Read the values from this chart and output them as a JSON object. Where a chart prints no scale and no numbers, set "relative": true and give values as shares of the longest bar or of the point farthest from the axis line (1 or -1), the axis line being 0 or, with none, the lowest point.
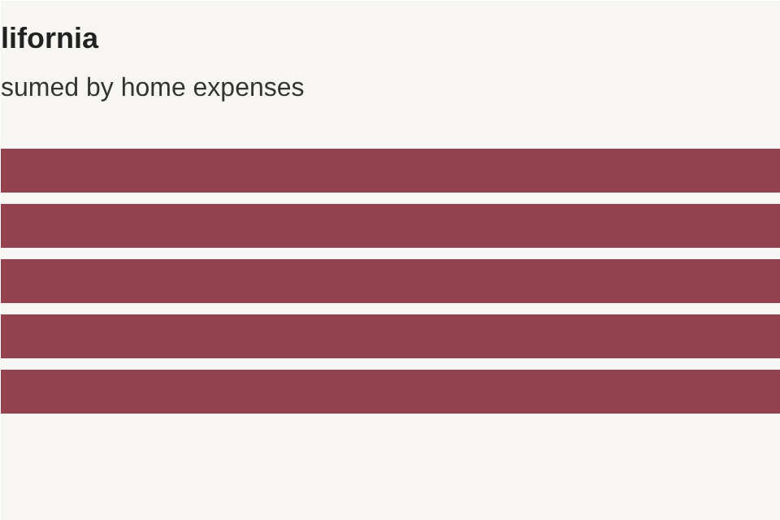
{
  "chart_data": {
    "type": "bar",
    "orientation": "horizontal",
    "relative": true,
    "title": "lifornia",
    "subtitle": "sumed by home expenses",
    "categories": [
      null,
      null,
      null,
      null,
      null
    ],
    "values": [
      1,
      1,
      1,
      1,
      1
    ],
    "color": "#94424e",
    "grid": false
  }
}
